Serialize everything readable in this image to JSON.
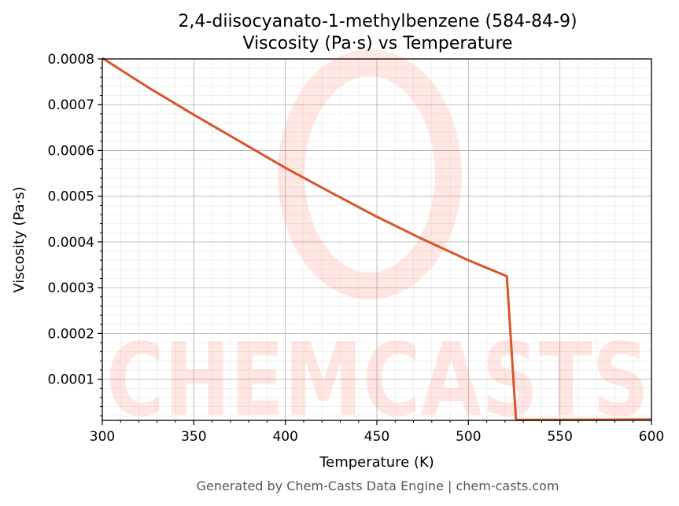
{
  "chart_data": {
    "type": "line",
    "title": "2,4-diisocyanato-1-methylbenzene (584-84-9)",
    "subtitle": "Viscosity (Pa·s) vs Temperature",
    "xlabel": "Temperature (K)",
    "ylabel": "Viscosity (Pa·s)",
    "xlim": [
      300,
      600
    ],
    "ylim": [
      1e-05,
      0.0008
    ],
    "xticks": [
      300,
      350,
      400,
      450,
      500,
      550,
      600
    ],
    "xtick_labels": [
      "300",
      "350",
      "400",
      "450",
      "500",
      "550",
      "600"
    ],
    "yticks": [
      0.0001,
      0.0002,
      0.0003,
      0.0004,
      0.0005,
      0.0006,
      0.0007,
      0.0008
    ],
    "ytick_labels": [
      "0.0001",
      "0.0002",
      "0.0003",
      "0.0004",
      "0.0005",
      "0.0006",
      "0.0007",
      "0.0008"
    ],
    "grid": true,
    "series": [
      {
        "color": "#d9542a",
        "x": [
          300,
          325,
          350,
          375,
          400,
          425,
          450,
          475,
          500,
          521,
          526,
          550,
          575,
          600
        ],
        "y": [
          0.000802,
          0.000738,
          0.000678,
          0.00062,
          0.000562,
          0.000508,
          0.000455,
          0.000406,
          0.00036,
          0.000325,
          1.1e-05,
          1.12e-05,
          1.15e-05,
          1.2e-05
        ]
      }
    ]
  },
  "watermark": "CHEMCASTS",
  "footer": "Generated by Chem-Casts Data Engine | chem-casts.com"
}
